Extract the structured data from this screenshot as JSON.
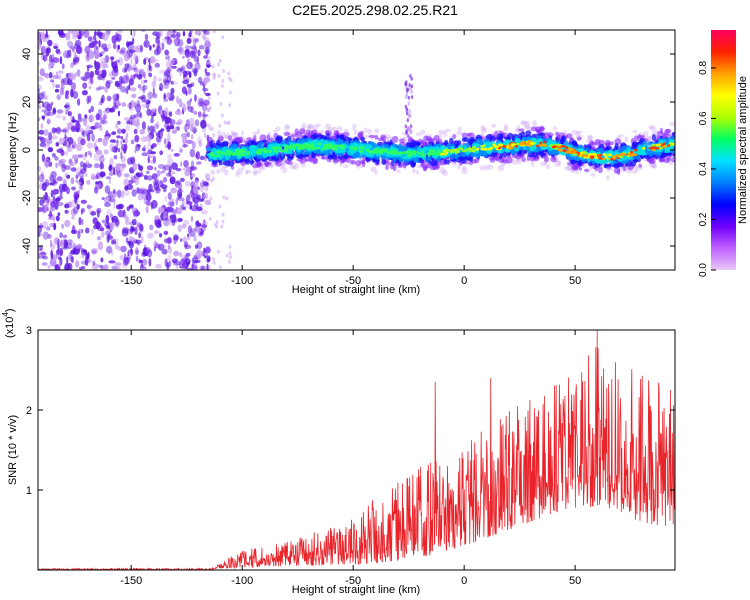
{
  "title": "C2E5.2025.298.02.25.R21",
  "colors": {
    "snr_line": "#e8232a",
    "spectro_dense_1": "#5a14e0",
    "spectro_dense_2": "#7a2ef0",
    "spectro_light": "#c89cf2",
    "colorbar_stops": [
      "#e8c8f8",
      "#c060ff",
      "#7000ff",
      "#0000ff",
      "#0080ff",
      "#00e0ff",
      "#00ff60",
      "#b0ff00",
      "#ffff00",
      "#ffa000",
      "#ff2000",
      "#ff0060"
    ]
  },
  "chart_data": [
    {
      "type": "heatmap",
      "name": "spectrogram",
      "xlabel": "Height of straight line (km)",
      "ylabel": "Frequency (Hz)",
      "xlim": [
        -192,
        95
      ],
      "ylim": [
        -50,
        50
      ],
      "xticks": [
        -150,
        -100,
        -50,
        0,
        50
      ],
      "yticks": [
        -40,
        -20,
        0,
        20,
        40
      ],
      "noise_region_x": [
        -192,
        -115
      ],
      "signal_region_x": [
        -115,
        95
      ],
      "signal_frequency_band": [
        -8,
        8
      ],
      "colorbar": {
        "label": "Normalized spectral amplitude",
        "range": [
          0.0,
          0.95
        ],
        "ticks": [
          "0.0",
          "0.2",
          "0.4",
          "0.6",
          "0.8"
        ]
      }
    },
    {
      "type": "line",
      "name": "snr",
      "xlabel": "Height of straight line (km)",
      "ylabel": "SNR (10 * v/v)",
      "y_multiplier_label": "(x10",
      "y_multiplier_exp": "4",
      "y_multiplier_close": ")",
      "xlim": [
        -192,
        95
      ],
      "ylim": [
        0,
        3.0
      ],
      "xticks": [
        -150,
        -100,
        -50,
        0,
        50
      ],
      "yticks": [
        1,
        2,
        3
      ],
      "envelope": {
        "x": [
          -192,
          -115,
          -110,
          -100,
          -80,
          -60,
          -40,
          -20,
          0,
          20,
          40,
          60,
          80,
          95
        ],
        "upper": [
          0.02,
          0.02,
          0.08,
          0.25,
          0.35,
          0.55,
          0.9,
          1.3,
          1.6,
          2.0,
          2.3,
          2.9,
          2.5,
          2.2
        ],
        "lower": [
          0.0,
          0.0,
          0.02,
          0.03,
          0.05,
          0.06,
          0.08,
          0.15,
          0.3,
          0.5,
          0.7,
          0.8,
          0.6,
          0.5
        ]
      },
      "peaks": [
        {
          "x": -13,
          "y": 2.35
        },
        {
          "x": 12,
          "y": 2.4
        },
        {
          "x": 60,
          "y": 3.0
        },
        {
          "x": 93,
          "y": 2.25
        }
      ]
    }
  ]
}
